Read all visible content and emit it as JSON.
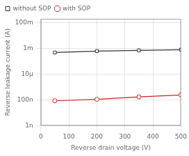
{
  "chart_data": {
    "type": "line",
    "log": "y",
    "xlabel": "Reverse drain voltage (V)",
    "ylabel": "Reverse leakage current (A)",
    "x": [
      50,
      200,
      350,
      500
    ],
    "series": [
      {
        "name": "without SOP",
        "color": "#333333",
        "marker": "square",
        "values": [
          0.00048,
          0.00062,
          0.0007,
          0.0008
        ]
      },
      {
        "name": "with SOP",
        "color": "#cc2222",
        "marker": "circle",
        "values": [
          8.5e-08,
          1.1e-07,
          1.7e-07,
          2.4e-07
        ]
      }
    ],
    "xlim": [
      0,
      500
    ],
    "xticks": [
      0,
      100,
      200,
      300,
      400,
      500
    ],
    "ylim": [
      1e-09,
      0.2
    ],
    "yticks": [
      {
        "value": 1e-09,
        "label": "1n"
      },
      {
        "value": 1e-07,
        "label": "100n"
      },
      {
        "value": 1e-05,
        "label": "10μ"
      },
      {
        "value": 0.001,
        "label": "1m"
      },
      {
        "value": 0.1,
        "label": "100m"
      }
    ],
    "grid": true,
    "legend": "upper left"
  }
}
